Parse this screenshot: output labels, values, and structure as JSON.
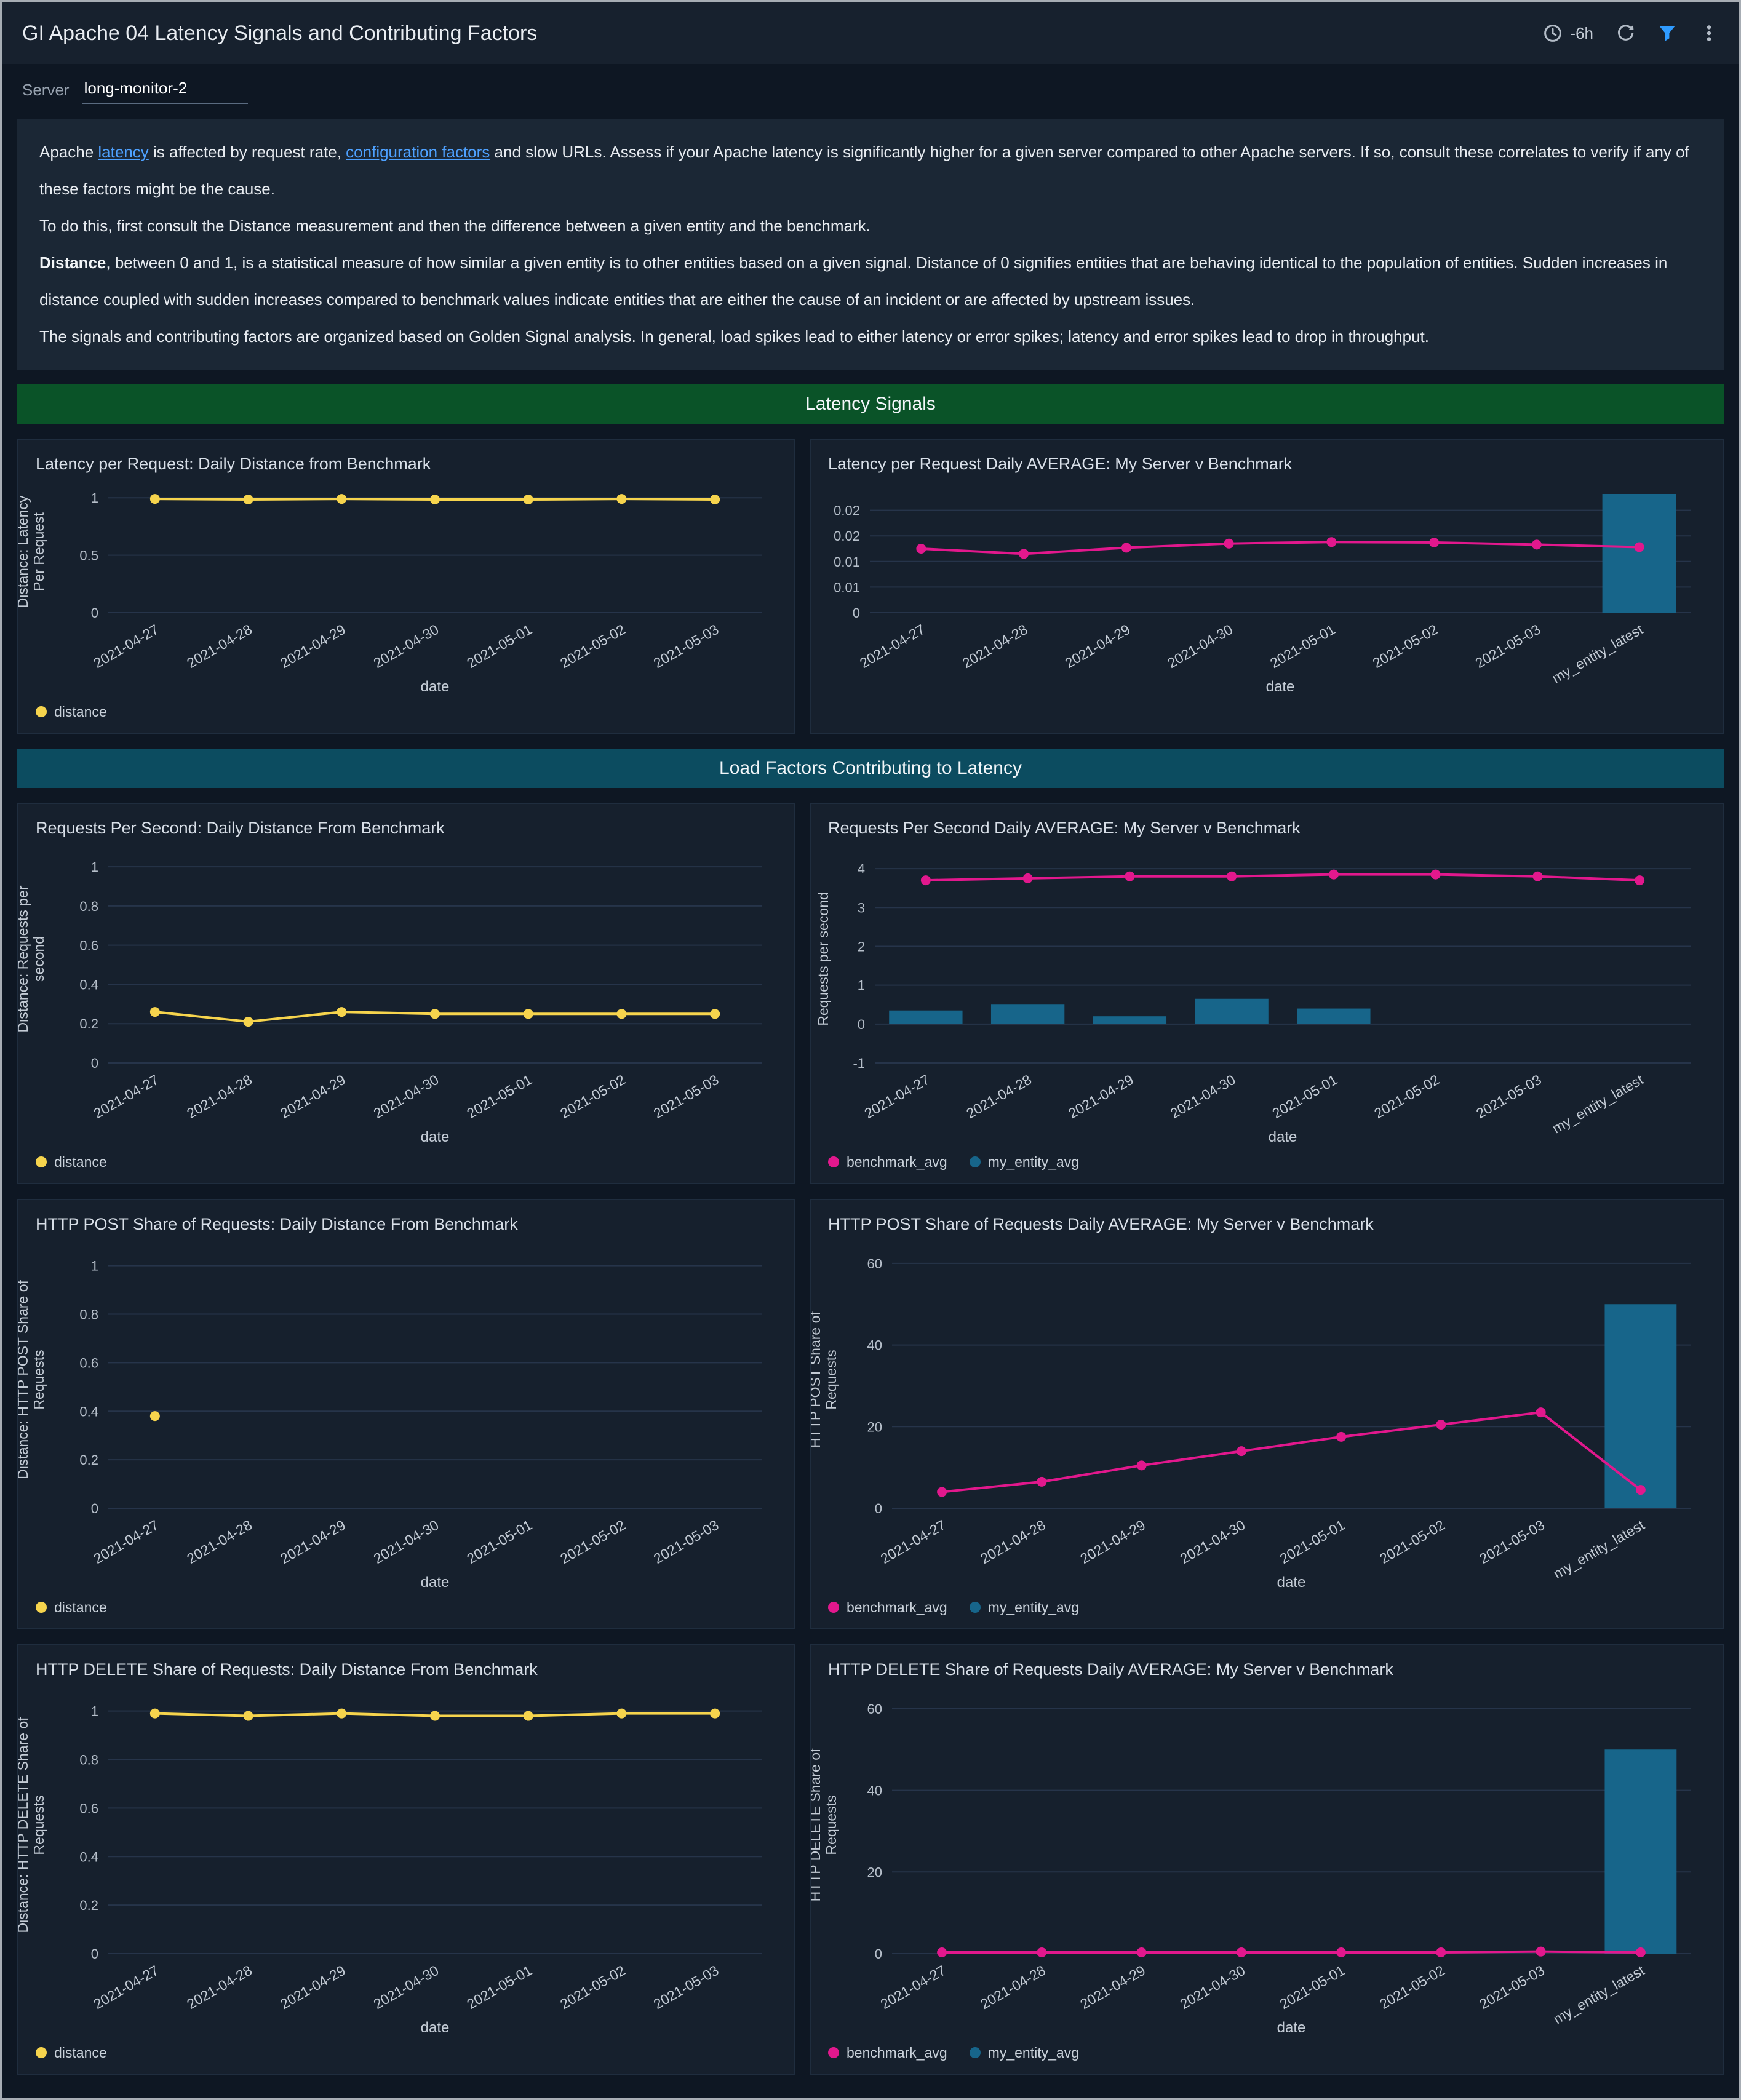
{
  "header": {
    "title": "GI Apache 04 Latency Signals and Contributing Factors",
    "time_range": "-6h",
    "icons": [
      "clock-icon",
      "refresh-icon",
      "filter-icon",
      "kebab-menu-icon"
    ]
  },
  "filters": {
    "server_label": "Server",
    "server_value": "long-monitor-2"
  },
  "description": {
    "p1_a": "Apache ",
    "p1_link1": "latency",
    "p1_b": " is affected by request rate, ",
    "p1_link2": "configuration factors",
    "p1_c": " and slow URLs. Assess if your Apache latency is significantly higher for a given server compared to other Apache servers. If so, consult these correlates to verify if any of these factors might be the cause.",
    "p2": "To do this, first consult the Distance measurement and then the difference between a given entity and the benchmark.",
    "p3_bold": "Distance",
    "p3_rest": ", between 0 and 1, is a statistical measure of how similar a given entity is to other entities based on a given signal. Distance of 0 signifies entities that are behaving identical to the population of entities. Sudden increases in distance coupled with sudden increases compared to benchmark values indicate entities that are either the cause of an incident or are affected by upstream issues.",
    "p4": "The signals and contributing factors are organized based on Golden Signal analysis. In general, load spikes lead to either latency or error spikes; latency and error spikes lead to drop in throughput."
  },
  "sections": {
    "latency": "Latency Signals",
    "load": "Load Factors Contributing to Latency"
  },
  "colors": {
    "accent_yellow": "#f6d44d",
    "accent_pink": "#e2188d",
    "accent_teal_bar": "#17658a",
    "link_blue": "#4ea1ff",
    "filter_icon_blue": "#2f9bff",
    "section_green": "#0a5328",
    "section_teal": "#0c4c60",
    "panel_bg": "#16202d",
    "page_bg": "#0e1723"
  },
  "chart_data": [
    {
      "type": "line",
      "title": "Latency per Request: Daily Distance from Benchmark",
      "categories": [
        "2021-04-27",
        "2021-04-28",
        "2021-04-29",
        "2021-04-30",
        "2021-05-01",
        "2021-05-02",
        "2021-05-03"
      ],
      "xlabel": "date",
      "ylabel": "Distance: Latency\nPer Request",
      "ylim": [
        0,
        1.06
      ],
      "yticks": [
        0,
        0.5,
        1
      ],
      "ytick_labels": [
        "0",
        "0.5",
        "1"
      ],
      "series": [
        {
          "name": "distance",
          "kind": "line",
          "color": "#f6d44d",
          "values": [
            0.99,
            0.985,
            0.99,
            0.985,
            0.985,
            0.99,
            0.985
          ]
        }
      ],
      "legend": [
        {
          "label": "distance",
          "color": "#f6d44d"
        }
      ]
    },
    {
      "type": "line",
      "title": "Latency per Request Daily AVERAGE: My Server v Benchmark",
      "categories": [
        "2021-04-27",
        "2021-04-28",
        "2021-04-29",
        "2021-04-30",
        "2021-05-01",
        "2021-05-02",
        "2021-05-03",
        "my_entity_latest"
      ],
      "xlabel": "date",
      "ylabel": "",
      "ylim": [
        0,
        0.0238
      ],
      "yticks": [
        0,
        0.005,
        0.01,
        0.015,
        0.02
      ],
      "ytick_labels": [
        "0",
        "0.01",
        "0.01",
        "0.02",
        "0.02"
      ],
      "series": [
        {
          "name": "my_entity_avg",
          "kind": "bar",
          "color": "#17658a",
          "values": [
            null,
            null,
            null,
            null,
            null,
            null,
            null,
            0.0232
          ]
        },
        {
          "name": "benchmark_avg",
          "kind": "line",
          "color": "#e2188d",
          "values": [
            0.0125,
            0.0115,
            0.0127,
            0.0135,
            0.0138,
            0.0137,
            0.0133,
            0.0128
          ]
        }
      ],
      "legend": []
    },
    {
      "type": "line",
      "title": "Requests Per Second: Daily Distance From Benchmark",
      "categories": [
        "2021-04-27",
        "2021-04-28",
        "2021-04-29",
        "2021-04-30",
        "2021-05-01",
        "2021-05-02",
        "2021-05-03"
      ],
      "xlabel": "date",
      "ylabel": "Distance: Requests per\nsecond",
      "ylim": [
        0,
        1.06
      ],
      "yticks": [
        0,
        0.2,
        0.4,
        0.6,
        0.8,
        1
      ],
      "ytick_labels": [
        "0",
        "0.2",
        "0.4",
        "0.6",
        "0.8",
        "1"
      ],
      "series": [
        {
          "name": "distance",
          "kind": "line",
          "color": "#f6d44d",
          "values": [
            0.26,
            0.21,
            0.26,
            0.25,
            0.25,
            0.25,
            0.25
          ]
        }
      ],
      "legend": [
        {
          "label": "distance",
          "color": "#f6d44d"
        }
      ]
    },
    {
      "type": "line",
      "title": "Requests Per Second Daily AVERAGE: My Server v Benchmark",
      "categories": [
        "2021-04-27",
        "2021-04-28",
        "2021-04-29",
        "2021-04-30",
        "2021-05-01",
        "2021-05-02",
        "2021-05-03",
        "my_entity_latest"
      ],
      "xlabel": "date",
      "ylabel": "Requests per second",
      "ylim": [
        -1,
        4.35
      ],
      "yticks": [
        -1,
        0,
        1,
        2,
        3,
        4
      ],
      "ytick_labels": [
        "-1",
        "0",
        "1",
        "2",
        "3",
        "4"
      ],
      "series": [
        {
          "name": "my_entity_avg",
          "kind": "bar",
          "color": "#17658a",
          "values": [
            0.35,
            0.5,
            0.2,
            0.65,
            0.4,
            null,
            null,
            null
          ]
        },
        {
          "name": "benchmark_avg",
          "kind": "line",
          "color": "#e2188d",
          "values": [
            3.7,
            3.75,
            3.8,
            3.8,
            3.85,
            3.85,
            3.8,
            3.7
          ]
        }
      ],
      "legend": [
        {
          "label": "benchmark_avg",
          "color": "#e2188d"
        },
        {
          "label": "my_entity_avg",
          "color": "#17658a"
        }
      ]
    },
    {
      "type": "line",
      "title": "HTTP POST Share of Requests: Daily Distance From Benchmark",
      "categories": [
        "2021-04-27",
        "2021-04-28",
        "2021-04-29",
        "2021-04-30",
        "2021-05-01",
        "2021-05-02",
        "2021-05-03"
      ],
      "xlabel": "date",
      "ylabel": "Distance: HTTP POST Share of\nRequests",
      "ylim": [
        0,
        1.06
      ],
      "yticks": [
        0,
        0.2,
        0.4,
        0.6,
        0.8,
        1
      ],
      "ytick_labels": [
        "0",
        "0.2",
        "0.4",
        "0.6",
        "0.8",
        "1"
      ],
      "series": [
        {
          "name": "distance",
          "kind": "line",
          "color": "#f6d44d",
          "values": [
            0.38,
            null,
            null,
            null,
            null,
            null,
            null
          ]
        }
      ],
      "legend": [
        {
          "label": "distance",
          "color": "#f6d44d"
        }
      ]
    },
    {
      "type": "line",
      "title": "HTTP POST Share of Requests Daily AVERAGE: My Server v Benchmark",
      "categories": [
        "2021-04-27",
        "2021-04-28",
        "2021-04-29",
        "2021-04-30",
        "2021-05-01",
        "2021-05-02",
        "2021-05-03",
        "my_entity_latest"
      ],
      "xlabel": "date",
      "ylabel": "HTTP POST Share of\nRequests",
      "ylim": [
        0,
        63
      ],
      "yticks": [
        0,
        20,
        40,
        60
      ],
      "ytick_labels": [
        "0",
        "20",
        "40",
        "60"
      ],
      "series": [
        {
          "name": "my_entity_avg",
          "kind": "bar",
          "color": "#17658a",
          "values": [
            null,
            null,
            null,
            null,
            null,
            null,
            null,
            50
          ]
        },
        {
          "name": "benchmark_avg",
          "kind": "line",
          "color": "#e2188d",
          "values": [
            4,
            6.5,
            10.5,
            14,
            17.5,
            20.5,
            23.5,
            4.5
          ]
        }
      ],
      "legend": [
        {
          "label": "benchmark_avg",
          "color": "#e2188d"
        },
        {
          "label": "my_entity_avg",
          "color": "#17658a"
        }
      ]
    },
    {
      "type": "line",
      "title": "HTTP DELETE Share of Requests: Daily Distance From Benchmark",
      "categories": [
        "2021-04-27",
        "2021-04-28",
        "2021-04-29",
        "2021-04-30",
        "2021-05-01",
        "2021-05-02",
        "2021-05-03"
      ],
      "xlabel": "date",
      "ylabel": "Distance: HTTP DELETE Share of\nRequests",
      "ylim": [
        0,
        1.06
      ],
      "yticks": [
        0,
        0.2,
        0.4,
        0.6,
        0.8,
        1
      ],
      "ytick_labels": [
        "0",
        "0.2",
        "0.4",
        "0.6",
        "0.8",
        "1"
      ],
      "series": [
        {
          "name": "distance",
          "kind": "line",
          "color": "#f6d44d",
          "values": [
            0.99,
            0.98,
            0.99,
            0.98,
            0.98,
            0.99,
            0.99
          ]
        }
      ],
      "legend": [
        {
          "label": "distance",
          "color": "#f6d44d"
        }
      ]
    },
    {
      "type": "line",
      "title": "HTTP DELETE Share of Requests Daily AVERAGE: My Server v Benchmark",
      "categories": [
        "2021-04-27",
        "2021-04-28",
        "2021-04-29",
        "2021-04-30",
        "2021-05-01",
        "2021-05-02",
        "2021-05-03",
        "my_entity_latest"
      ],
      "xlabel": "date",
      "ylabel": "HTTP DELETE Share of\nRequests",
      "ylim": [
        0,
        63
      ],
      "yticks": [
        0,
        20,
        40,
        60
      ],
      "ytick_labels": [
        "0",
        "20",
        "40",
        "60"
      ],
      "series": [
        {
          "name": "my_entity_avg",
          "kind": "bar",
          "color": "#17658a",
          "values": [
            null,
            null,
            null,
            null,
            null,
            null,
            null,
            50
          ]
        },
        {
          "name": "benchmark_avg",
          "kind": "line",
          "color": "#e2188d",
          "values": [
            0.3,
            0.3,
            0.3,
            0.3,
            0.3,
            0.3,
            0.5,
            0.3
          ]
        }
      ],
      "legend": [
        {
          "label": "benchmark_avg",
          "color": "#e2188d"
        },
        {
          "label": "my_entity_avg",
          "color": "#17658a"
        }
      ]
    }
  ]
}
